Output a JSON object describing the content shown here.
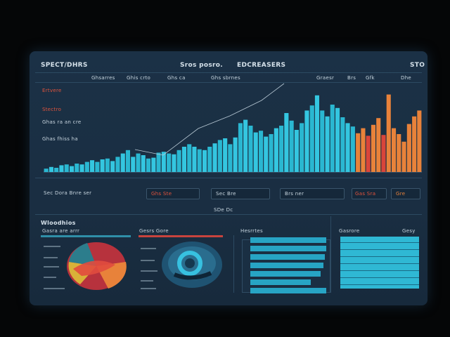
{
  "header": {
    "left_title": "SPECT/DHRS",
    "center_title": "Sros posro.",
    "center_title2": "EDCREASERS",
    "right_label": "STO"
  },
  "left_labels": [
    "Ertvere",
    "Stectro",
    "Ghas ra an cre",
    "Ghas fhiss ha"
  ],
  "top_labels": [
    "Ghsarres",
    "Ghis crto",
    "Ghs ca",
    "Ghs sbrnes",
    "Graesr",
    "Brs",
    "Gfk",
    "Dhe"
  ],
  "controls": {
    "row_label": "Sec Dora Bnre ser",
    "pill1": "Ghs Ste",
    "pill2": "Sec Bre",
    "pill3": "Brs ner",
    "pill4": "Gas Sra",
    "pill5": "Gre",
    "sub_label": "SDe Dc"
  },
  "section_title": "Wloodhios",
  "panels": {
    "p1_title": "Gasra are arrr",
    "p2_title": "Gesrs Gore",
    "p3_title": "Hesrrtes",
    "p4_title": "Gasrore",
    "p4_right": "Gesy"
  },
  "colors": {
    "teal": "#2ab7d1",
    "cyan": "#34c6e0",
    "orange": "#e8823a",
    "red": "#d9453a",
    "panel_bg": "#1b3146"
  },
  "chart_data": {
    "type": "bar",
    "values": [
      4,
      6,
      5,
      8,
      9,
      7,
      10,
      9,
      12,
      14,
      12,
      15,
      16,
      13,
      18,
      22,
      26,
      18,
      22,
      20,
      16,
      17,
      23,
      24,
      22,
      21,
      26,
      30,
      33,
      30,
      27,
      26,
      30,
      34,
      38,
      40,
      33,
      41,
      58,
      62,
      55,
      47,
      49,
      42,
      45,
      52,
      55,
      70,
      61,
      50,
      58,
      73,
      79,
      91,
      73,
      66,
      80,
      76,
      65,
      58,
      54,
      46,
      52,
      43,
      56,
      64,
      44,
      92,
      52,
      45,
      36,
      57,
      66,
      73
    ],
    "highlight_start": 61,
    "ylim": [
      0,
      100
    ]
  }
}
